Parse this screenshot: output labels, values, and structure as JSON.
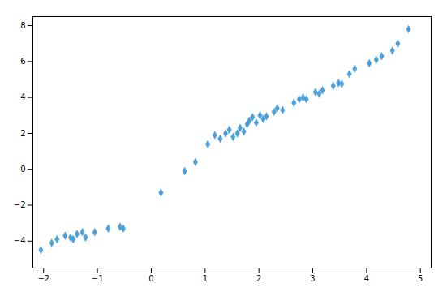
{
  "chart_data": {
    "type": "scatter",
    "color": "#4d9fda",
    "marker": "diamond",
    "xlim": [
      -2.2,
      5.2
    ],
    "ylim": [
      -5.5,
      8.5
    ],
    "xticks": [
      -2,
      -1,
      0,
      1,
      2,
      3,
      4,
      5
    ],
    "yticks": [
      -4,
      -2,
      0,
      2,
      4,
      6,
      8
    ],
    "grid": false,
    "x": [
      -2.05,
      -1.85,
      -1.75,
      -1.6,
      -1.5,
      -1.45,
      -1.38,
      -1.28,
      -1.22,
      -1.05,
      -0.8,
      -0.58,
      -0.52,
      0.18,
      0.62,
      0.82,
      1.05,
      1.18,
      1.28,
      1.38,
      1.45,
      1.52,
      1.6,
      1.65,
      1.72,
      1.78,
      1.82,
      1.88,
      1.95,
      2.02,
      2.08,
      2.14,
      2.28,
      2.34,
      2.44,
      2.65,
      2.75,
      2.82,
      2.88,
      3.05,
      3.12,
      3.18,
      3.38,
      3.48,
      3.54,
      3.68,
      3.78,
      4.05,
      4.18,
      4.28,
      4.48,
      4.58,
      4.78
    ],
    "values": [
      -4.5,
      -4.1,
      -3.9,
      -3.7,
      -3.8,
      -3.9,
      -3.6,
      -3.5,
      -3.8,
      -3.5,
      -3.3,
      -3.2,
      -3.3,
      -1.3,
      -0.1,
      0.4,
      1.4,
      1.9,
      1.7,
      2.0,
      2.2,
      1.8,
      2.0,
      2.3,
      2.1,
      2.5,
      2.7,
      2.9,
      2.6,
      3.0,
      2.8,
      2.95,
      3.2,
      3.4,
      3.3,
      3.7,
      3.9,
      4.0,
      3.9,
      4.3,
      4.2,
      4.4,
      4.65,
      4.8,
      4.75,
      5.3,
      5.6,
      5.9,
      6.1,
      6.3,
      6.6,
      7.0,
      7.8
    ]
  }
}
